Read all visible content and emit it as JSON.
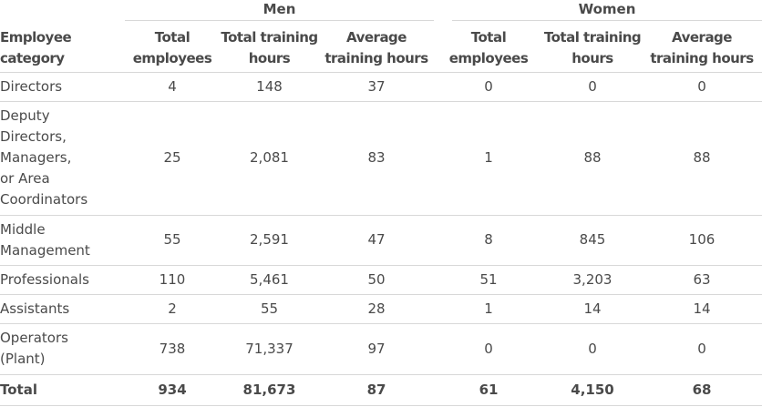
{
  "groups": {
    "men": "Men",
    "women": "Women"
  },
  "columns": {
    "category": "Employee category",
    "men_total_employees": "Total employees",
    "men_total_hours": "Total training hours",
    "men_avg_hours": "Average training hours",
    "women_total_employees": "Total employees",
    "women_total_hours": "Total training hours",
    "women_avg_hours": "Average training hours"
  },
  "rows": [
    {
      "category": "Directors",
      "m_emp": "4",
      "m_hours": "148",
      "m_avg": "37",
      "w_emp": "0",
      "w_hours": "0",
      "w_avg": "0"
    },
    {
      "category": "Deputy Directors, Managers, or Area Coordinators",
      "m_emp": "25",
      "m_hours": "2,081",
      "m_avg": "83",
      "w_emp": "1",
      "w_hours": "88",
      "w_avg": "88"
    },
    {
      "category": "Middle Management",
      "m_emp": "55",
      "m_hours": "2,591",
      "m_avg": "47",
      "w_emp": "8",
      "w_hours": "845",
      "w_avg": "106"
    },
    {
      "category": "Professionals",
      "m_emp": "110",
      "m_hours": "5,461",
      "m_avg": "50",
      "w_emp": "51",
      "w_hours": "3,203",
      "w_avg": "63"
    },
    {
      "category": "Assistants",
      "m_emp": "2",
      "m_hours": "55",
      "m_avg": "28",
      "w_emp": "1",
      "w_hours": "14",
      "w_avg": "14"
    },
    {
      "category": "Operators (Plant)",
      "m_emp": "738",
      "m_hours": "71,337",
      "m_avg": "97",
      "w_emp": "0",
      "w_hours": "0",
      "w_avg": "0"
    }
  ],
  "total": {
    "category": "Total",
    "m_emp": "934",
    "m_hours": "81,673",
    "m_avg": "87",
    "w_emp": "61",
    "w_hours": "4,150",
    "w_avg": "68"
  }
}
